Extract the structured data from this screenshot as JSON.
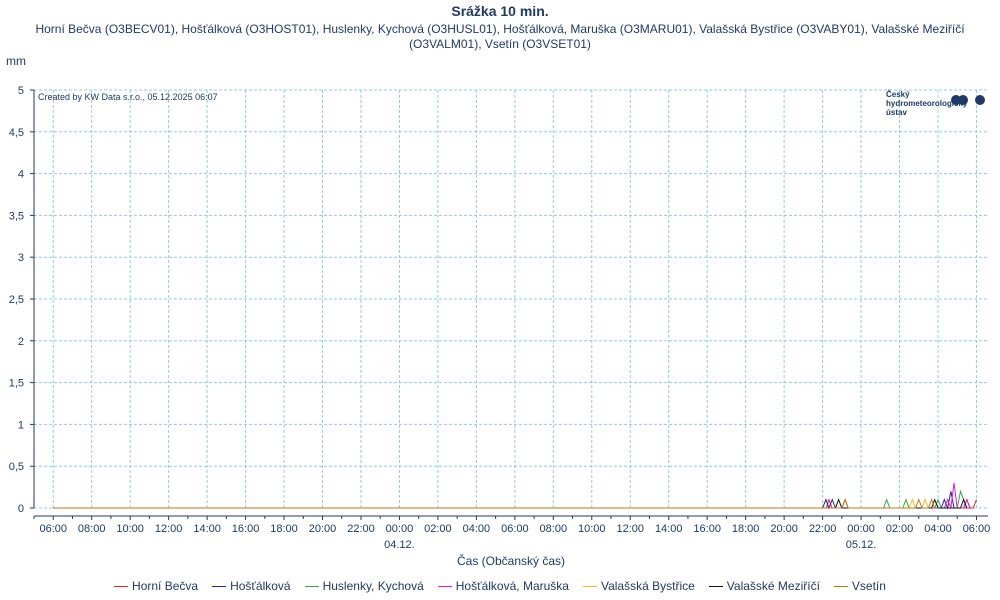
{
  "chart_data": {
    "type": "line",
    "title": "Srážka 10 min.",
    "subtitle": "Horní Bečva (O3BECV01), Hošťálková (O3HOST01), Huslenky, Kychová (O3HUSL01), Hošťálková, Maruška (O3MARU01), Valašská Bystřice (O3VABY01), Valašské Meziříčí (O3VALM01), Vsetín (O3VSET01)",
    "ylabel": "mm",
    "xlabel": "Čas (Občanský čas)",
    "credit": "Created by KW Data s.r.o., 05.12.2025 06:07",
    "logo_text": [
      "Český",
      "hydrometeorologický",
      "ústav"
    ],
    "ylim": [
      0,
      5
    ],
    "y_ticks": [
      0,
      0.5,
      1,
      1.5,
      2,
      2.5,
      3,
      3.5,
      4,
      4.5,
      5
    ],
    "y_tick_labels": [
      "0",
      "0,5",
      "1",
      "1,5",
      "2",
      "2,5",
      "3",
      "3,5",
      "4",
      "4,5",
      "5"
    ],
    "x_range_hours": [
      -1,
      48.6
    ],
    "x_ticks": [
      0,
      2,
      4,
      6,
      8,
      10,
      12,
      14,
      16,
      18,
      20,
      22,
      24,
      26,
      28,
      30,
      32,
      34,
      36,
      38,
      40,
      42,
      44,
      46,
      48
    ],
    "x_tick_labels": [
      "06:00",
      "08:00",
      "10:00",
      "12:00",
      "14:00",
      "16:00",
      "18:00",
      "20:00",
      "22:00",
      "00:00",
      "02:00",
      "04:00",
      "06:00",
      "08:00",
      "10:00",
      "12:00",
      "14:00",
      "16:00",
      "18:00",
      "20:00",
      "22:00",
      "00:00",
      "02:00",
      "04:00",
      "06:00"
    ],
    "date_labels": [
      {
        "hour": 18,
        "label": "04.12."
      },
      {
        "hour": 42,
        "label": "05.12."
      }
    ],
    "grid": true,
    "legend_position": "bottom",
    "series": [
      {
        "name": "Horní Bečva",
        "color": "#d62728",
        "points": [
          [
            0,
            0
          ],
          [
            40.2,
            0
          ],
          [
            40.33,
            0.1
          ],
          [
            40.5,
            0
          ],
          [
            41.0,
            0
          ],
          [
            41.17,
            0.1
          ],
          [
            41.33,
            0
          ],
          [
            47.83,
            0
          ],
          [
            48.0,
            0.1
          ]
        ]
      },
      {
        "name": "Hošťálková",
        "color": "#2b1fa6",
        "points": [
          [
            0,
            0
          ],
          [
            40.0,
            0
          ],
          [
            40.17,
            0.1
          ],
          [
            40.33,
            0
          ],
          [
            40.5,
            0.1
          ],
          [
            40.67,
            0
          ],
          [
            46.17,
            0
          ],
          [
            46.33,
            0.1
          ],
          [
            46.5,
            0
          ],
          [
            46.67,
            0.2
          ],
          [
            46.83,
            0
          ],
          [
            47.33,
            0
          ],
          [
            47.5,
            0.1
          ],
          [
            47.67,
            0
          ]
        ]
      },
      {
        "name": "Huslenky, Kychová",
        "color": "#3aa84a",
        "points": [
          [
            0,
            0
          ],
          [
            43.17,
            0
          ],
          [
            43.33,
            0.1
          ],
          [
            43.5,
            0
          ],
          [
            44.17,
            0
          ],
          [
            44.33,
            0.1
          ],
          [
            44.5,
            0
          ],
          [
            45.83,
            0
          ],
          [
            46.0,
            0.1
          ],
          [
            46.17,
            0
          ],
          [
            47.0,
            0
          ],
          [
            47.17,
            0.2
          ],
          [
            47.33,
            0.1
          ],
          [
            47.5,
            0
          ]
        ]
      },
      {
        "name": "Hošťálková, Maruška",
        "color": "#e01ad0",
        "points": [
          [
            0,
            0
          ],
          [
            46.33,
            0
          ],
          [
            46.5,
            0.1
          ],
          [
            46.67,
            0
          ],
          [
            46.83,
            0.3
          ],
          [
            47.0,
            0
          ],
          [
            47.33,
            0
          ],
          [
            47.5,
            0.1
          ],
          [
            47.67,
            0
          ]
        ]
      },
      {
        "name": "Valašská Bystřice",
        "color": "#e8c020",
        "points": [
          [
            0,
            0
          ],
          [
            44.5,
            0
          ],
          [
            44.67,
            0.1
          ],
          [
            44.83,
            0
          ],
          [
            45.17,
            0
          ],
          [
            45.33,
            0.1
          ],
          [
            45.5,
            0
          ]
        ]
      },
      {
        "name": "Valašské Meziříčí",
        "color": "#111111",
        "points": [
          [
            0,
            0
          ],
          [
            40.67,
            0
          ],
          [
            40.83,
            0.1
          ],
          [
            41.0,
            0
          ],
          [
            45.67,
            0
          ],
          [
            45.83,
            0.1
          ],
          [
            46.0,
            0
          ],
          [
            47.17,
            0
          ],
          [
            47.33,
            0.1
          ],
          [
            47.5,
            0
          ]
        ]
      },
      {
        "name": "Vsetín",
        "color": "#c07a10",
        "points": [
          [
            0,
            0
          ],
          [
            41.0,
            0
          ],
          [
            41.17,
            0.1
          ],
          [
            41.33,
            0
          ],
          [
            44.83,
            0
          ],
          [
            45.0,
            0.1
          ],
          [
            45.17,
            0
          ],
          [
            45.5,
            0
          ],
          [
            45.67,
            0.1
          ],
          [
            45.83,
            0
          ]
        ]
      }
    ]
  }
}
